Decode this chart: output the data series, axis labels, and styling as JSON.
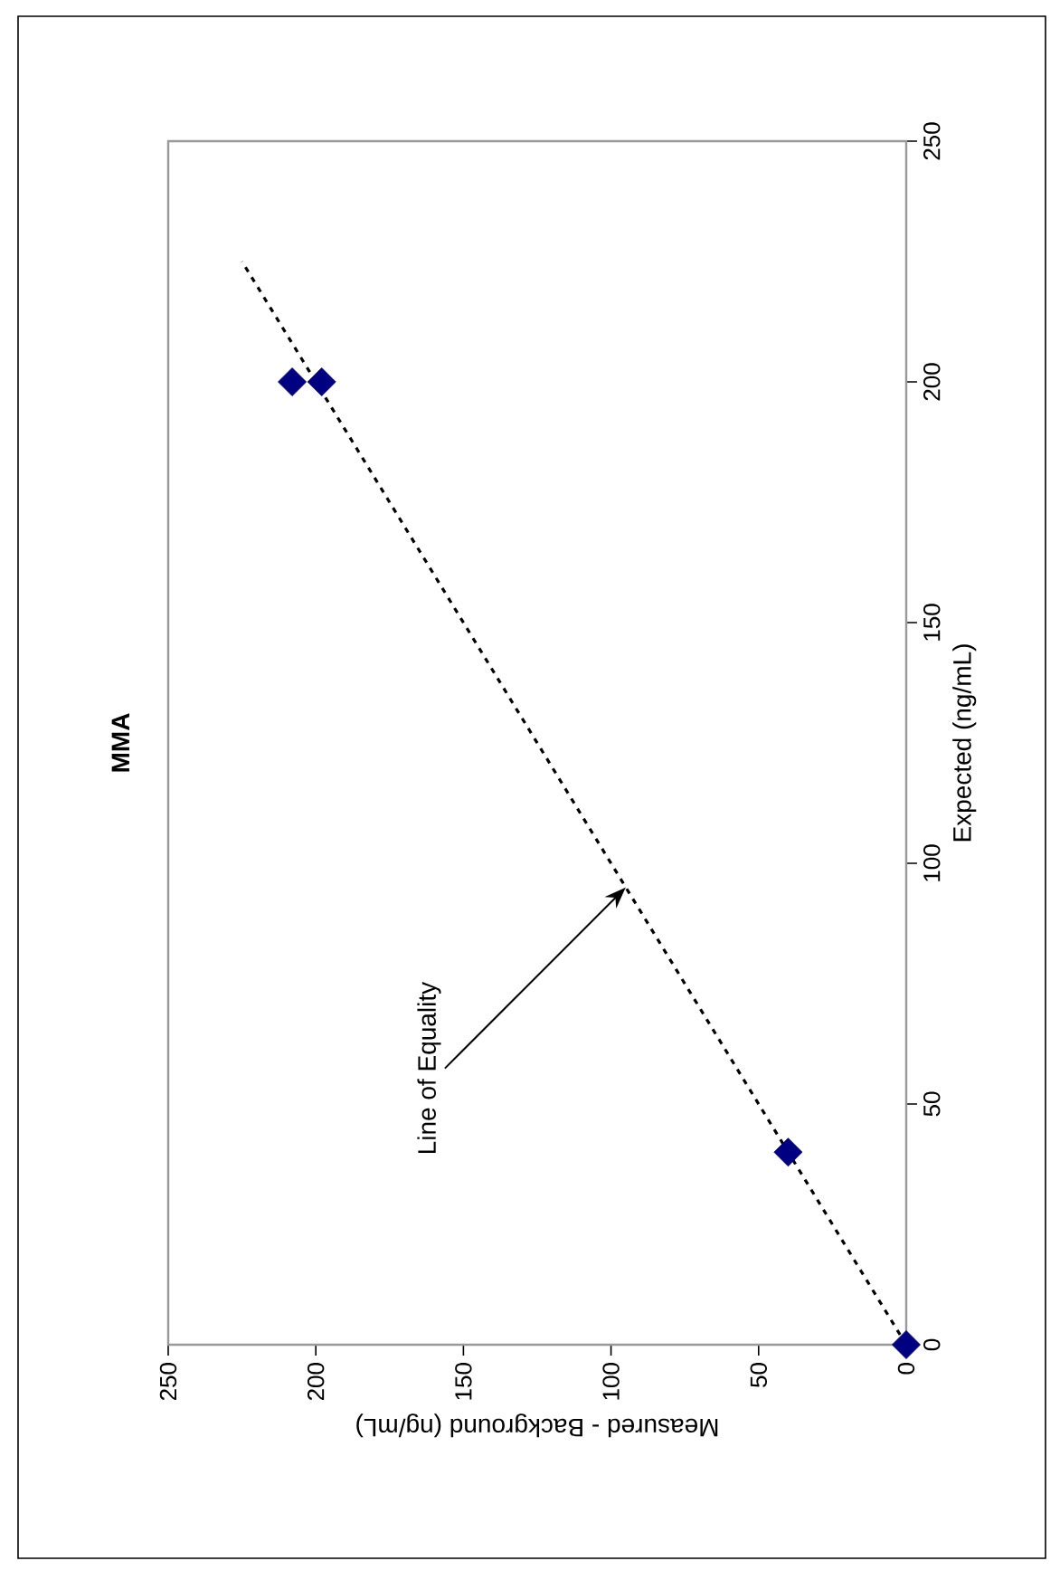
{
  "chart_data": {
    "type": "scatter",
    "title": "MMA",
    "xlabel": "Measured - Background (ng/mL)",
    "ylabel": "Expected (ng/mL)",
    "xlim": [
      250,
      0
    ],
    "ylim": [
      0,
      250
    ],
    "xticks": [
      250,
      200,
      150,
      100,
      50,
      0
    ],
    "yticks": [
      0,
      50,
      100,
      150,
      200,
      250
    ],
    "series": [
      {
        "type": "scatter",
        "color": "#000080",
        "marker": "diamond",
        "x": [
          0,
          40,
          208,
          198
        ],
        "values": [
          0,
          40,
          200,
          200
        ]
      },
      {
        "type": "line",
        "color": "#000000",
        "line_style": "dashed",
        "marker": "none",
        "x": [
          0,
          225
        ],
        "values": [
          0,
          225
        ]
      }
    ],
    "annotations": [
      {
        "text": "Line of Equality",
        "x": 95,
        "y": 95
      }
    ]
  }
}
